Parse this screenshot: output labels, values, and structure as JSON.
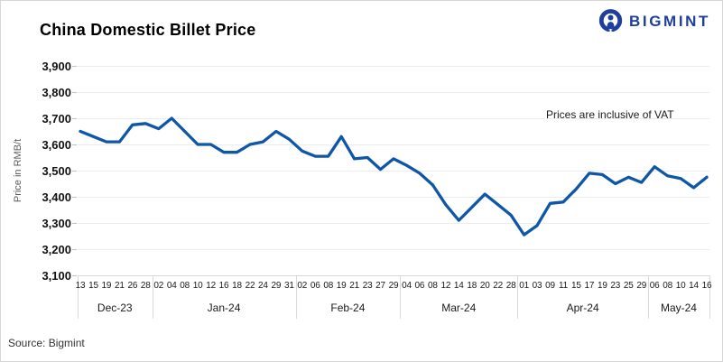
{
  "header": {
    "title": "China Domestic Billet Price",
    "brand": "BIGMINT"
  },
  "annotation": {
    "text": "Prices are inclusive of VAT"
  },
  "footer": {
    "source": "Source: Bigmint"
  },
  "colors": {
    "line": "#0e56a8",
    "brand": "#1e409c",
    "grid": "#ececec",
    "axis": "#d9d9d9",
    "tick": "#bfbfbf",
    "axis_title": "#595959"
  },
  "chart_data": {
    "type": "line",
    "title": "China Domestic Billet Price",
    "ylabel": "Price in RMB/t",
    "ylim": [
      3100,
      3900
    ],
    "ytick_step": 100,
    "yticks": [
      "3,900",
      "3,800",
      "3,700",
      "3,600",
      "3,500",
      "3,400",
      "3,300",
      "3,200",
      "3,100"
    ],
    "grid": "horizontal",
    "legend": "none",
    "months": [
      {
        "label": "Dec-23",
        "days": [
          "13",
          "15",
          "19",
          "21",
          "26",
          "28"
        ],
        "values": [
          3650,
          3630,
          3610,
          3610,
          3675,
          3680
        ]
      },
      {
        "label": "Jan-24",
        "days": [
          "02",
          "04",
          "08",
          "10",
          "12",
          "16",
          "18",
          "22",
          "24",
          "29",
          "31"
        ],
        "values": [
          3660,
          3700,
          3650,
          3600,
          3600,
          3570,
          3570,
          3600,
          3610,
          3650,
          3620
        ]
      },
      {
        "label": "Feb-24",
        "days": [
          "02",
          "06",
          "08",
          "19",
          "21",
          "23",
          "27",
          "29"
        ],
        "values": [
          3575,
          3555,
          3555,
          3630,
          3545,
          3550,
          3505,
          3545
        ]
      },
      {
        "label": "Mar-24",
        "days": [
          "04",
          "06",
          "08",
          "12",
          "14",
          "18",
          "20",
          "22",
          "28"
        ],
        "values": [
          3520,
          3490,
          3445,
          3370,
          3310,
          3360,
          3410,
          3370,
          3330
        ]
      },
      {
        "label": "Apr-24",
        "days": [
          "01",
          "03",
          "09",
          "11",
          "15",
          "17",
          "19",
          "23",
          "25",
          "29"
        ],
        "values": [
          3255,
          3290,
          3375,
          3380,
          3430,
          3490,
          3485,
          3450,
          3475,
          3455
        ]
      },
      {
        "label": "May-24",
        "days": [
          "06",
          "08",
          "10",
          "14",
          "16"
        ],
        "values": [
          3515,
          3480,
          3470,
          3435,
          3475
        ]
      }
    ]
  }
}
